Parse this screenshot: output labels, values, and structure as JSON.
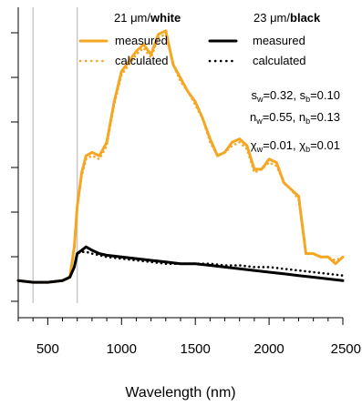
{
  "chart_data": {
    "type": "line",
    "xlabel": "Wavelength (nm)",
    "ylabel": "",
    "xlim": [
      300,
      2500
    ],
    "ylim": [
      0,
      1
    ],
    "x_ticks": [
      500,
      1000,
      1500,
      2000,
      2500
    ],
    "vertical_markers": [
      400,
      700
    ],
    "legend": {
      "placement": "top",
      "groups": [
        {
          "head_prefix": "21 ",
          "head_unit": "μm/",
          "head_bold": "white",
          "color": "#F5A623",
          "entries": [
            "measured",
            "calculated"
          ]
        },
        {
          "head_prefix": "23 ",
          "head_unit": "μm/",
          "head_bold": "black",
          "color": "#000000",
          "entries": [
            "measured",
            "calculated"
          ]
        }
      ]
    },
    "annotations": [
      [
        {
          "t": "s"
        },
        {
          "t": "w",
          "sub": true
        },
        {
          "t": "=0.32, s"
        },
        {
          "t": "b",
          "sub": true
        },
        {
          "t": "=0.10"
        }
      ],
      [
        {
          "t": "n"
        },
        {
          "t": "w",
          "sub": true
        },
        {
          "t": "=0.55, n"
        },
        {
          "t": "b",
          "sub": true
        },
        {
          "t": "=0.13"
        }
      ],
      [
        {
          "t": "χ"
        },
        {
          "t": "w",
          "sub": true
        },
        {
          "t": "=0.01, χ"
        },
        {
          "t": "b",
          "sub": true
        },
        {
          "t": "=0.01"
        }
      ]
    ],
    "series": [
      {
        "name": "measured",
        "group": "white",
        "style": "solid",
        "color": "#F5A623",
        "x": [
          300,
          400,
          500,
          600,
          650,
          680,
          700,
          730,
          760,
          800,
          850,
          900,
          950,
          1000,
          1050,
          1100,
          1150,
          1200,
          1250,
          1300,
          1350,
          1400,
          1450,
          1500,
          1550,
          1600,
          1650,
          1700,
          1750,
          1800,
          1850,
          1900,
          1950,
          2000,
          2050,
          2100,
          2150,
          2200,
          2250,
          2300,
          2350,
          2400,
          2450,
          2500
        ],
        "y": [
          0.04,
          0.035,
          0.035,
          0.04,
          0.05,
          0.14,
          0.26,
          0.36,
          0.41,
          0.42,
          0.41,
          0.45,
          0.57,
          0.66,
          0.69,
          0.72,
          0.74,
          0.71,
          0.77,
          0.78,
          0.68,
          0.64,
          0.6,
          0.57,
          0.52,
          0.46,
          0.41,
          0.42,
          0.45,
          0.46,
          0.44,
          0.37,
          0.37,
          0.4,
          0.39,
          0.33,
          0.31,
          0.29,
          0.12,
          0.12,
          0.11,
          0.11,
          0.09,
          0.11
        ]
      },
      {
        "name": "calculated",
        "group": "white",
        "style": "dotted",
        "color": "#F5A623",
        "x": [
          300,
          400,
          500,
          600,
          650,
          680,
          700,
          730,
          760,
          800,
          850,
          900,
          950,
          1000,
          1050,
          1100,
          1150,
          1200,
          1250,
          1300,
          1350,
          1400,
          1450,
          1500,
          1550,
          1600,
          1650,
          1700,
          1750,
          1800,
          1850,
          1900,
          1950,
          2000,
          2050,
          2100,
          2150,
          2200,
          2250,
          2300,
          2350,
          2400,
          2450,
          2500
        ],
        "y": [
          0.04,
          0.035,
          0.035,
          0.04,
          0.05,
          0.15,
          0.26,
          0.35,
          0.4,
          0.41,
          0.4,
          0.44,
          0.56,
          0.65,
          0.68,
          0.71,
          0.73,
          0.7,
          0.76,
          0.77,
          0.68,
          0.63,
          0.6,
          0.56,
          0.52,
          0.45,
          0.41,
          0.42,
          0.44,
          0.45,
          0.43,
          0.36,
          0.37,
          0.39,
          0.38,
          0.33,
          0.31,
          0.28,
          0.12,
          0.12,
          0.11,
          0.11,
          0.1,
          0.11
        ]
      },
      {
        "name": "measured",
        "group": "black",
        "style": "solid",
        "color": "#000000",
        "x": [
          300,
          400,
          500,
          600,
          650,
          680,
          700,
          730,
          760,
          800,
          850,
          900,
          1000,
          1100,
          1200,
          1300,
          1400,
          1500,
          1600,
          1700,
          1800,
          1900,
          2000,
          2100,
          2200,
          2300,
          2400,
          2500
        ],
        "y": [
          0.04,
          0.035,
          0.035,
          0.04,
          0.05,
          0.08,
          0.12,
          0.13,
          0.14,
          0.13,
          0.12,
          0.115,
          0.11,
          0.105,
          0.1,
          0.095,
          0.09,
          0.09,
          0.085,
          0.08,
          0.075,
          0.07,
          0.065,
          0.06,
          0.055,
          0.05,
          0.045,
          0.04
        ]
      },
      {
        "name": "calculated",
        "group": "black",
        "style": "dotted",
        "color": "#000000",
        "x": [
          300,
          400,
          500,
          600,
          650,
          680,
          700,
          730,
          760,
          800,
          850,
          900,
          1000,
          1100,
          1200,
          1300,
          1400,
          1500,
          1600,
          1700,
          1800,
          1900,
          2000,
          2100,
          2200,
          2300,
          2400,
          2500
        ],
        "y": [
          0.04,
          0.035,
          0.035,
          0.04,
          0.05,
          0.08,
          0.12,
          0.125,
          0.125,
          0.12,
          0.115,
          0.11,
          0.105,
          0.1,
          0.095,
          0.09,
          0.09,
          0.09,
          0.09,
          0.085,
          0.085,
          0.08,
          0.08,
          0.075,
          0.07,
          0.065,
          0.06,
          0.055
        ]
      }
    ]
  }
}
